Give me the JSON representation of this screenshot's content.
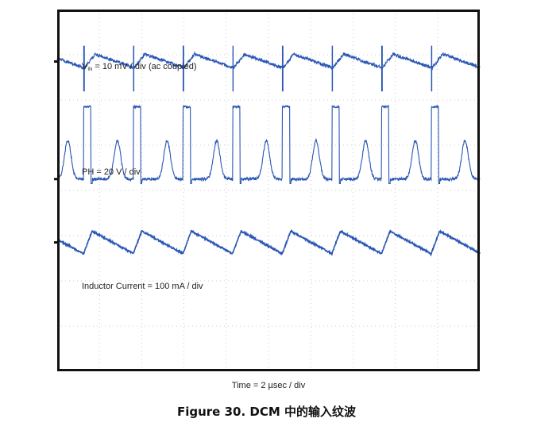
{
  "chart_data": {
    "type": "line",
    "title": "Figure 30. DCM 中的输入纹波",
    "xlabel": "Time = 2 µsec / div",
    "grid": true,
    "divisions": {
      "x": 10,
      "y": 8
    },
    "x_unit": "µs",
    "x_range": [
      0,
      20
    ],
    "switching_period_us": 2.35,
    "first_event_us": 1.25,
    "series": [
      {
        "name": "",
        "label_main": "V",
        "label_sub": "IN",
        "label_rest": " = 10 mV / div (ac coupled)",
        "scale": "10 mV / div",
        "coupling": "ac",
        "color": "#2a56b4",
        "baseline_div": 1.15,
        "ripple_amplitude_div": 0.3,
        "spike_amplitude_div": 1.2
      },
      {
        "name": "",
        "label_main": "PH = 20 V / div",
        "scale": "20 V / div",
        "color": "#2a56b4",
        "baseline_div": 3.75,
        "high_level_div": 2.15,
        "ring_peak_div": 2.9,
        "pulse_width_us": 0.35
      },
      {
        "name": "",
        "label_main": "Inductor Current = 100 mA / div",
        "scale": "100 mA / div",
        "color": "#2a56b4",
        "baseline_div": 5.15,
        "peak_div": 4.9,
        "valley_div": 5.4
      }
    ]
  }
}
